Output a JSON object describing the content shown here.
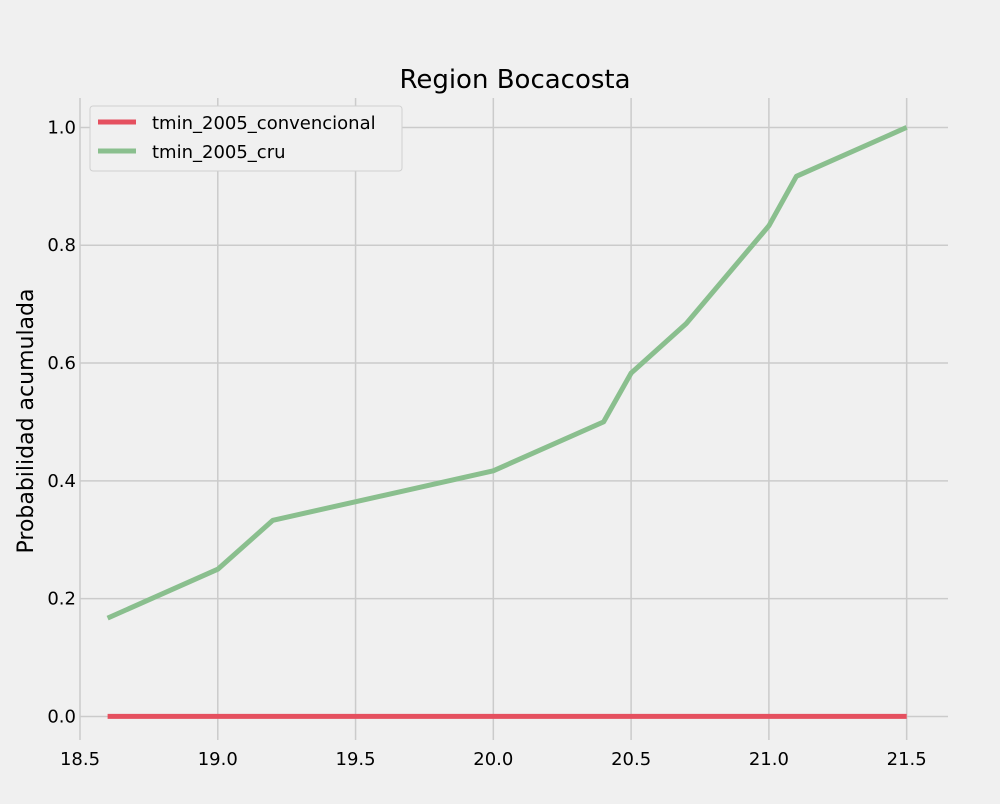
{
  "chart_data": {
    "type": "line",
    "title": "Region Bocacosta",
    "xlabel": "",
    "ylabel": "Probabilidad acumulada",
    "xlim": [
      18.5,
      21.65
    ],
    "ylim": [
      -0.04,
      1.05
    ],
    "xticks": [
      18.5,
      19.0,
      19.5,
      20.0,
      20.5,
      21.0,
      21.5
    ],
    "xtick_labels": [
      "18.5",
      "19.0",
      "19.5",
      "20.0",
      "20.5",
      "21.0",
      "21.5"
    ],
    "yticks": [
      0.0,
      0.2,
      0.4,
      0.6,
      0.8,
      1.0
    ],
    "ytick_labels": [
      "0.0",
      "0.2",
      "0.4",
      "0.6",
      "0.8",
      "1.0"
    ],
    "grid": true,
    "legend_position": "top-left",
    "series": [
      {
        "name": "tmin_2005_convencional",
        "color": "#e5505f",
        "x": [
          18.6,
          21.5
        ],
        "y": [
          0.0,
          0.0
        ]
      },
      {
        "name": "tmin_2005_cru",
        "color": "#8abf8e",
        "x": [
          18.6,
          19.0,
          19.2,
          20.0,
          20.4,
          20.5,
          20.7,
          21.0,
          21.1,
          21.5
        ],
        "y": [
          0.167,
          0.25,
          0.333,
          0.417,
          0.5,
          0.583,
          0.667,
          0.833,
          0.917,
          1.0
        ]
      }
    ]
  }
}
